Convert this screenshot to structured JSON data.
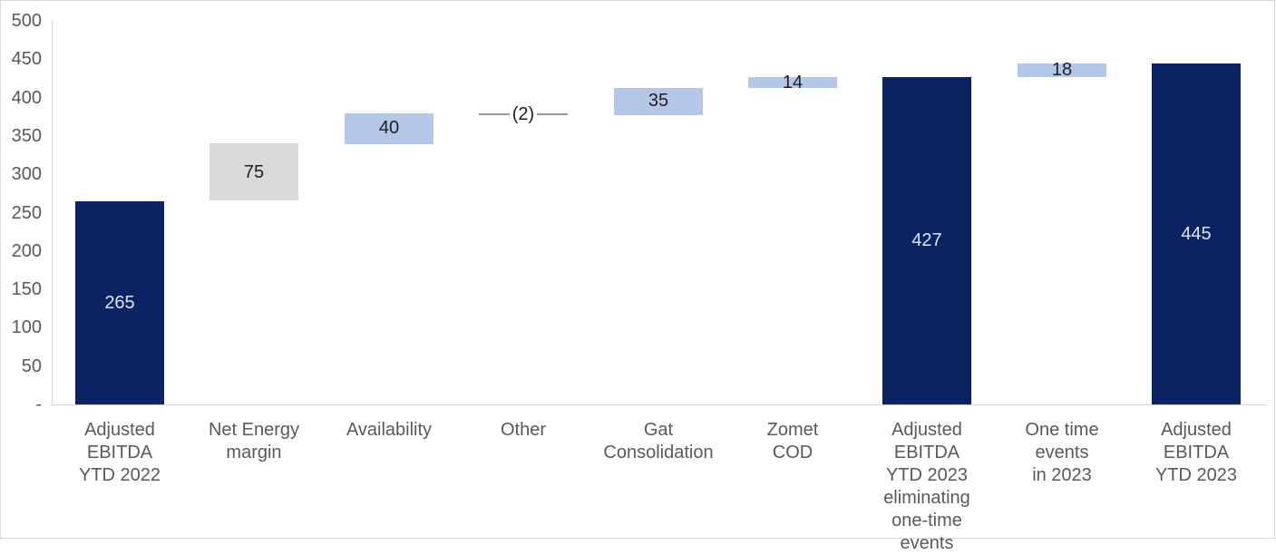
{
  "chart_data": {
    "type": "bar",
    "subtype": "waterfall",
    "title": "",
    "xlabel": "",
    "ylabel": "",
    "ylim": [
      0,
      500
    ],
    "grid": false,
    "legend": "none",
    "y_axis": {
      "ticks": [
        {
          "label": "500",
          "value": 500
        },
        {
          "label": "450",
          "value": 450
        },
        {
          "label": "400",
          "value": 400
        },
        {
          "label": "350",
          "value": 350
        },
        {
          "label": "300",
          "value": 300
        },
        {
          "label": "250",
          "value": 250
        },
        {
          "label": "200",
          "value": 200
        },
        {
          "label": "150",
          "value": 150
        },
        {
          "label": "100",
          "value": 100
        },
        {
          "label": "50",
          "value": 50
        },
        {
          "label": "-",
          "value": 0
        }
      ]
    },
    "categories": [
      "Adjusted EBITDA YTD 2022",
      "Net Energy margin",
      "Availability",
      "Other",
      "Gat Consolidation",
      "Zomet COD",
      "Adjusted EBITDA YTD 2023 eliminating one-time events",
      "One time events in 2023",
      "Adjusted EBITDA YTD 2023"
    ],
    "values": [
      265,
      75,
      40,
      -2,
      35,
      14,
      427,
      18,
      445
    ],
    "bars": [
      {
        "category": "Adjusted\nEBITDA\nYTD 2022",
        "value": 265,
        "display": "265",
        "start": 0,
        "end": 265,
        "style": "total"
      },
      {
        "category": "Net Energy\nmargin",
        "value": 75,
        "display": "75",
        "start": 265,
        "end": 340,
        "style": "gray"
      },
      {
        "category": "Availability",
        "value": 40,
        "display": "40",
        "start": 340,
        "end": 380,
        "style": "change"
      },
      {
        "category": "Other",
        "value": -2,
        "display": "(2)",
        "start": 378,
        "end": 380,
        "style": "thin"
      },
      {
        "category": "Gat\nConsolidation",
        "value": 35,
        "display": "35",
        "start": 378,
        "end": 413,
        "style": "change"
      },
      {
        "category": "Zomet\nCOD",
        "value": 14,
        "display": "14",
        "start": 413,
        "end": 427,
        "style": "change"
      },
      {
        "category": "Adjusted EBITDA\nYTD 2023\neliminating\none-time\nevents",
        "value": 427,
        "display": "427",
        "start": 0,
        "end": 427,
        "style": "total"
      },
      {
        "category": "One time\nevents\nin 2023",
        "value": 18,
        "display": "18",
        "start": 427,
        "end": 445,
        "style": "change"
      },
      {
        "category": "Adjusted\nEBITDA\nYTD 2023",
        "value": 445,
        "display": "445",
        "start": 0,
        "end": 445,
        "style": "total"
      }
    ],
    "colors": {
      "total_bar": "#0b2362",
      "change_bar": "#b4c7e7",
      "gray_bar": "#d9d9d9",
      "other_line": "#9a9a9a",
      "axis_line": "#d2d2d2",
      "axis_text": "#595959",
      "label_on_dark": "#dbe5f2",
      "label_on_light": "#1f1f1f"
    }
  }
}
